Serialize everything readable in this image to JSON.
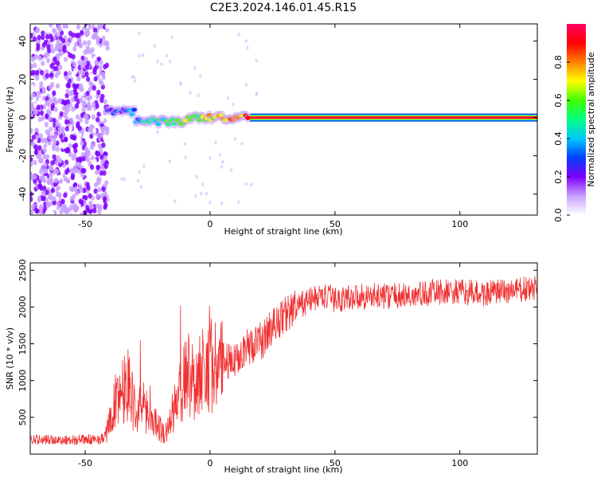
{
  "title": "C2E3.2024.146.01.45.R15",
  "colors": {
    "snr_line": "#f03030",
    "tone_center": "#e0206a",
    "axis": "#000000"
  },
  "chart_data": [
    {
      "type": "heatmap",
      "xlabel": "Height of straight line (km)",
      "ylabel": "Frequency (Hz)",
      "xlim": [
        -72,
        131
      ],
      "ylim": [
        -51,
        49
      ],
      "xticks": [
        -50,
        0,
        50,
        100
      ],
      "yticks": [
        -40,
        -20,
        0,
        20,
        40
      ],
      "colorbar": {
        "label": "Normalized spectral amplitude",
        "range": [
          0.0,
          1.0
        ],
        "ticks": [
          "0.0",
          "0.2",
          "0.4",
          "0.6",
          "0.8"
        ],
        "colors": [
          "#ffffff",
          "#c8a0ff",
          "#8000ff",
          "#0040ff",
          "#00c8ff",
          "#00ff80",
          "#40ff00",
          "#ffff00",
          "#ff8000",
          "#ff0000",
          "#ff0066"
        ]
      },
      "regions": [
        {
          "x_range": [
            -72,
            -41
          ],
          "freq_range": [
            -51,
            49
          ],
          "amplitude": "low-moderate broadband"
        },
        {
          "x_range": [
            -41,
            16
          ],
          "freq_range": [
            -8,
            6
          ],
          "amplitude": "narrowband, rising"
        },
        {
          "x_range": [
            16,
            131
          ],
          "freq_range": [
            -1,
            1
          ],
          "amplitude": "peak (~1.0)"
        }
      ]
    },
    {
      "type": "line",
      "xlabel": "Height of straight line (km)",
      "ylabel": "SNR (10 * v/v)",
      "xlim": [
        -72,
        131
      ],
      "ylim": [
        0,
        2600
      ],
      "xticks": [
        -50,
        0,
        50,
        100
      ],
      "yticks": [
        500,
        1000,
        1500,
        2000,
        2500
      ],
      "series": [
        {
          "x": [
            -72,
            -60,
            -45,
            -42,
            -38,
            -35,
            -33,
            -30,
            -27,
            -24,
            -21,
            -18,
            -15,
            -12,
            -9,
            -6,
            -3,
            0,
            3,
            6,
            9,
            12,
            15,
            18,
            21,
            24,
            27,
            30,
            35,
            40,
            45,
            50,
            60,
            70,
            80,
            90,
            100,
            110,
            120,
            131
          ],
          "values": [
            200,
            190,
            200,
            230,
            700,
            900,
            1000,
            600,
            650,
            500,
            400,
            250,
            550,
            850,
            1100,
            1000,
            1150,
            1250,
            1150,
            1300,
            1200,
            1400,
            1450,
            1500,
            1550,
            1700,
            1800,
            1900,
            2000,
            2100,
            2150,
            2100,
            2150,
            2150,
            2150,
            2200,
            2200,
            2180,
            2220,
            2250
          ]
        }
      ]
    }
  ]
}
